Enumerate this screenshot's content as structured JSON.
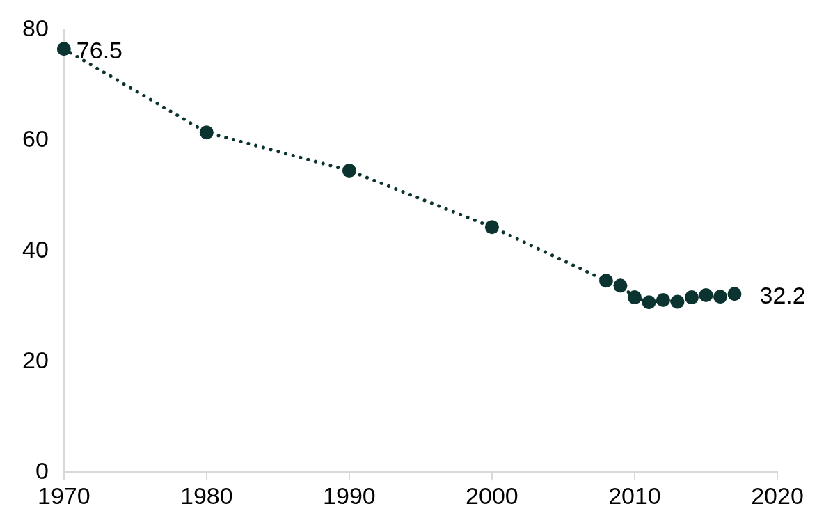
{
  "chart_data": {
    "type": "line",
    "x": [
      1970,
      1980,
      1990,
      2000,
      2008,
      2009,
      2010,
      2011,
      2012,
      2013,
      2014,
      2015,
      2016,
      2017
    ],
    "values": [
      76.5,
      61.4,
      54.5,
      44.3,
      34.6,
      33.7,
      31.6,
      30.7,
      31.1,
      30.8,
      31.6,
      32.0,
      31.7,
      32.2
    ],
    "value_labels": [
      "76.5",
      null,
      null,
      null,
      null,
      null,
      null,
      null,
      null,
      null,
      null,
      null,
      null,
      "32.2"
    ],
    "data_labels": true,
    "color": "#0b3330",
    "line_style": "dotted",
    "marker": "circle",
    "xlim": [
      1970,
      2020
    ],
    "xticks": [
      1970,
      1980,
      1990,
      2000,
      2010,
      2020
    ],
    "ylim": [
      0,
      80
    ],
    "yticks": [
      0,
      20,
      40,
      60,
      80
    ],
    "grid": false
  }
}
